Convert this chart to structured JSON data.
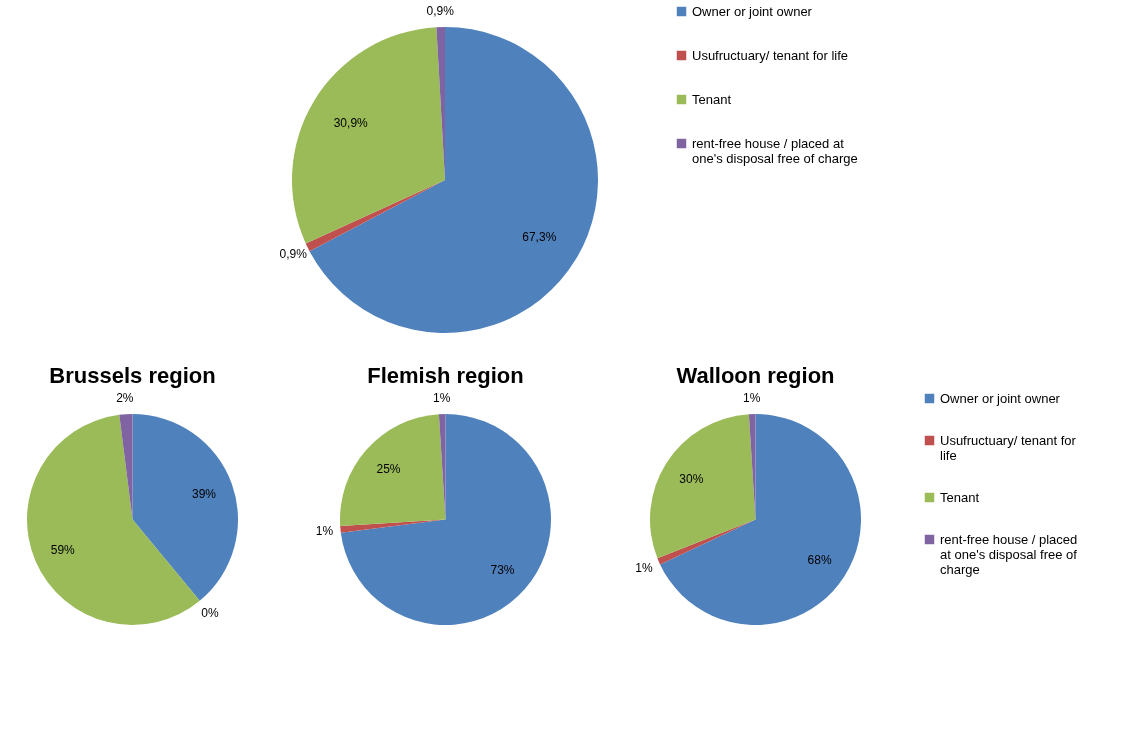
{
  "chart_data": [
    {
      "type": "pie",
      "categories": [
        "Owner or joint owner",
        "Usufructuary/ tenant for life",
        "Tenant",
        "rent-free house / placed at one's disposal free of charge"
      ],
      "values": [
        67.3,
        0.9,
        30.9,
        0.9
      ],
      "value_labels": [
        "67,3%",
        "0,9%",
        "30,9%",
        "0,9%"
      ],
      "colors": [
        "#4f81bd",
        "#c0504d",
        "#9bbb59",
        "#8064a2"
      ],
      "legend": "right"
    },
    {
      "type": "pie",
      "title": "Brussels region",
      "categories": [
        null,
        null,
        null,
        null
      ],
      "values": [
        39,
        0,
        59,
        2
      ],
      "value_labels": [
        "39%",
        "0%",
        "59%",
        "2%"
      ],
      "colors": [
        "#4f81bd",
        "#c0504d",
        "#9bbb59",
        "#8064a2"
      ],
      "legend": false
    },
    {
      "type": "pie",
      "title": "Flemish region",
      "categories": [
        null,
        null,
        null,
        null
      ],
      "values": [
        73,
        1,
        25,
        1
      ],
      "value_labels": [
        "73%",
        "1%",
        "25%",
        "1%"
      ],
      "colors": [
        "#4f81bd",
        "#c0504d",
        "#9bbb59",
        "#8064a2"
      ],
      "legend": false
    },
    {
      "type": "pie",
      "title": "Walloon region",
      "categories": [
        "Owner or joint owner",
        "Usufructuary/ tenant for life",
        "Tenant",
        "rent-free house / placed at one's disposal free of charge"
      ],
      "values": [
        68,
        1,
        30,
        1
      ],
      "value_labels": [
        "68%",
        "1%",
        "30%",
        "1%"
      ],
      "colors": [
        "#4f81bd",
        "#c0504d",
        "#9bbb59",
        "#8064a2"
      ],
      "legend": "right"
    }
  ]
}
